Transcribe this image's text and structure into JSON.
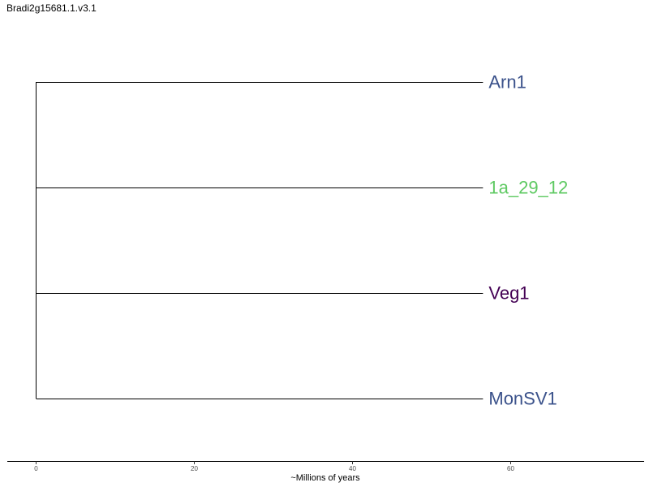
{
  "title": "Bradi2g15681.1.v3.1",
  "chart_data": {
    "type": "tree",
    "leaves": [
      {
        "name": "Arn1",
        "color": "#3b528b",
        "branch_length": 56.5
      },
      {
        "name": "1a_29_12",
        "color": "#5ec962",
        "branch_length": 56.5
      },
      {
        "name": "Veg1",
        "color": "#440154",
        "branch_length": 56.5
      },
      {
        "name": "MonSV1",
        "color": "#3b528b",
        "branch_length": 56.5
      }
    ],
    "xaxis": {
      "label": "~Millions of years",
      "ticks": [
        0,
        20,
        40,
        60
      ],
      "range": [
        -3.6,
        77
      ]
    }
  }
}
